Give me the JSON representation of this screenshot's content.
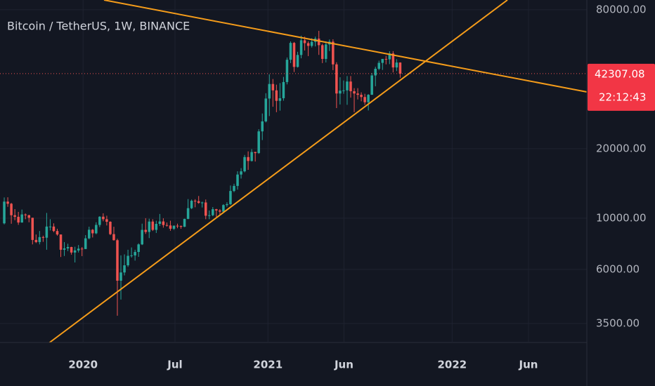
{
  "chart_data": {
    "type": "candlestick",
    "title": "Bitcoin / TetherUS, 1W, BINANCE",
    "open": [
      9500,
      11800,
      11550,
      10300,
      10140,
      9580,
      10380,
      10300,
      10040,
      8050,
      7880,
      8280,
      8230,
      9200,
      9200,
      8800,
      8500,
      7300,
      7400,
      7500,
      7100,
      7250,
      7380,
      7350,
      8180,
      8910,
      8600,
      9350,
      10150,
      9900,
      9650,
      8530,
      8030,
      5360,
      5820,
      6250,
      6870,
      6900,
      7140,
      7700,
      8900,
      8720,
      9670,
      8900,
      9450,
      9680,
      9340,
      9300,
      9000,
      9280,
      9250,
      9180,
      9930,
      11050,
      11900,
      11850,
      11650,
      11700,
      10250,
      10300,
      10940,
      10800,
      10680,
      11400,
      11500,
      13120,
      13800,
      15460,
      15960,
      18400,
      17700,
      19350,
      19150,
      23780,
      26270,
      33000,
      38150,
      35800,
      32250,
      33100,
      38900,
      48600,
      57480,
      45240,
      50970,
      59000,
      57350,
      55800,
      58100,
      60000,
      56200,
      49000,
      56600,
      58200,
      46400,
      34700,
      35700,
      35800,
      39100,
      35500,
      34700,
      34250,
      33500,
      31800,
      34250,
      41550,
      44400,
      47100,
      49000,
      48800,
      51750,
      45000,
      47260
    ],
    "high": [
      12300,
      12320,
      11650,
      10950,
      10650,
      10900,
      10480,
      10350,
      10050,
      8500,
      8800,
      8400,
      10540,
      9900,
      9500,
      9000,
      8500,
      7880,
      7750,
      7520,
      7520,
      7650,
      7500,
      8450,
      9190,
      8980,
      9600,
      10200,
      10500,
      10250,
      9700,
      9180,
      8150,
      6900,
      6970,
      7300,
      7470,
      7300,
      7780,
      9470,
      10000,
      9950,
      9900,
      9750,
      10430,
      9990,
      9580,
      9750,
      9300,
      9470,
      9300,
      9950,
      12100,
      12050,
      12090,
      12480,
      11800,
      12050,
      10800,
      11180,
      10980,
      10950,
      11500,
      11720,
      13860,
      14100,
      15970,
      16480,
      18800,
      19480,
      19920,
      19400,
      24300,
      28420,
      34800,
      42000,
      40100,
      37900,
      38500,
      40950,
      49700,
      58350,
      58000,
      52600,
      61800,
      61200,
      58400,
      60200,
      61200,
      64850,
      57000,
      58400,
      59500,
      59600,
      47400,
      40800,
      39500,
      41300,
      41300,
      36600,
      36600,
      35100,
      34600,
      34500,
      42600,
      45300,
      48150,
      49000,
      50500,
      52900,
      52950,
      48850,
      47350
    ],
    "low": [
      9400,
      11200,
      9460,
      9800,
      9360,
      9560,
      9900,
      9600,
      7700,
      7800,
      7700,
      7900,
      7300,
      8850,
      8700,
      8400,
      6790,
      6860,
      7200,
      6950,
      6430,
      7100,
      6850,
      7350,
      8100,
      8250,
      8520,
      9150,
      9700,
      9300,
      8450,
      8000,
      3780,
      4440,
      5650,
      6150,
      6750,
      6550,
      6800,
      7650,
      8550,
      8200,
      8800,
      8630,
      9250,
      9100,
      9200,
      8820,
      8900,
      9050,
      9000,
      9150,
      9900,
      10950,
      11150,
      11550,
      11130,
      9900,
      9900,
      10200,
      10140,
      10370,
      10540,
      11200,
      11400,
      12970,
      13300,
      14850,
      15800,
      16200,
      17600,
      17600,
      19000,
      21800,
      26000,
      27700,
      30400,
      28800,
      29240,
      32300,
      38000,
      47000,
      43000,
      44950,
      49300,
      53300,
      50400,
      54900,
      55500,
      51000,
      47000,
      47300,
      53000,
      43800,
      30000,
      31100,
      34600,
      31000,
      33300,
      28800,
      32700,
      32100,
      31000,
      29300,
      34250,
      37300,
      43800,
      43900,
      46400,
      46500,
      42800,
      43380,
      40600
    ],
    "close": [
      11800,
      11550,
      10300,
      10140,
      9580,
      10380,
      10300,
      10040,
      8050,
      7880,
      8280,
      8230,
      9200,
      9200,
      8800,
      8500,
      7300,
      7400,
      7500,
      7100,
      7250,
      7380,
      7350,
      8180,
      8910,
      8600,
      9350,
      10150,
      9900,
      9650,
      8530,
      8030,
      5360,
      5820,
      6250,
      6870,
      6900,
      7140,
      7700,
      8900,
      8720,
      9670,
      8900,
      9450,
      9680,
      9340,
      9300,
      9000,
      9280,
      9250,
      9180,
      9930,
      11050,
      11900,
      11850,
      11650,
      11700,
      10250,
      10300,
      10940,
      10800,
      10680,
      11400,
      11500,
      13120,
      13800,
      15460,
      15960,
      18400,
      17700,
      19350,
      19150,
      23780,
      26270,
      33000,
      38150,
      35800,
      32250,
      33100,
      38900,
      48600,
      57480,
      45240,
      50970,
      59000,
      57350,
      55800,
      58100,
      60000,
      56200,
      49000,
      56600,
      58200,
      46400,
      34700,
      35700,
      35800,
      39100,
      35500,
      34700,
      34250,
      33500,
      31800,
      34250,
      41550,
      44400,
      47100,
      49000,
      48800,
      51750,
      45000,
      47260,
      42307.08
    ],
    "up_color": "#26a69a",
    "down_color": "#ef5350",
    "countdown": "22:12:43",
    "xlim": [
      -1.2,
      164.8
    ],
    "xticks": [
      {
        "value": 22.3,
        "label": "2020"
      },
      {
        "value": 48.3,
        "label": "Jul"
      },
      {
        "value": 74.6,
        "label": "2021"
      },
      {
        "value": 96.1,
        "label": "Jun"
      },
      {
        "value": 126.7,
        "label": "2022"
      },
      {
        "value": 148.3,
        "label": "Jun"
      }
    ],
    "ylim": [
      2914,
      88200
    ],
    "yticks": [
      {
        "value": 3500,
        "label": "3500.00"
      },
      {
        "value": 6000,
        "label": "6000.00"
      },
      {
        "value": 10000,
        "label": "10000.00"
      },
      {
        "value": 20000,
        "label": "20000.00"
      },
      {
        "value": 80000,
        "label": "80000.00"
      }
    ],
    "log_scale": true,
    "grid": true
  }
}
